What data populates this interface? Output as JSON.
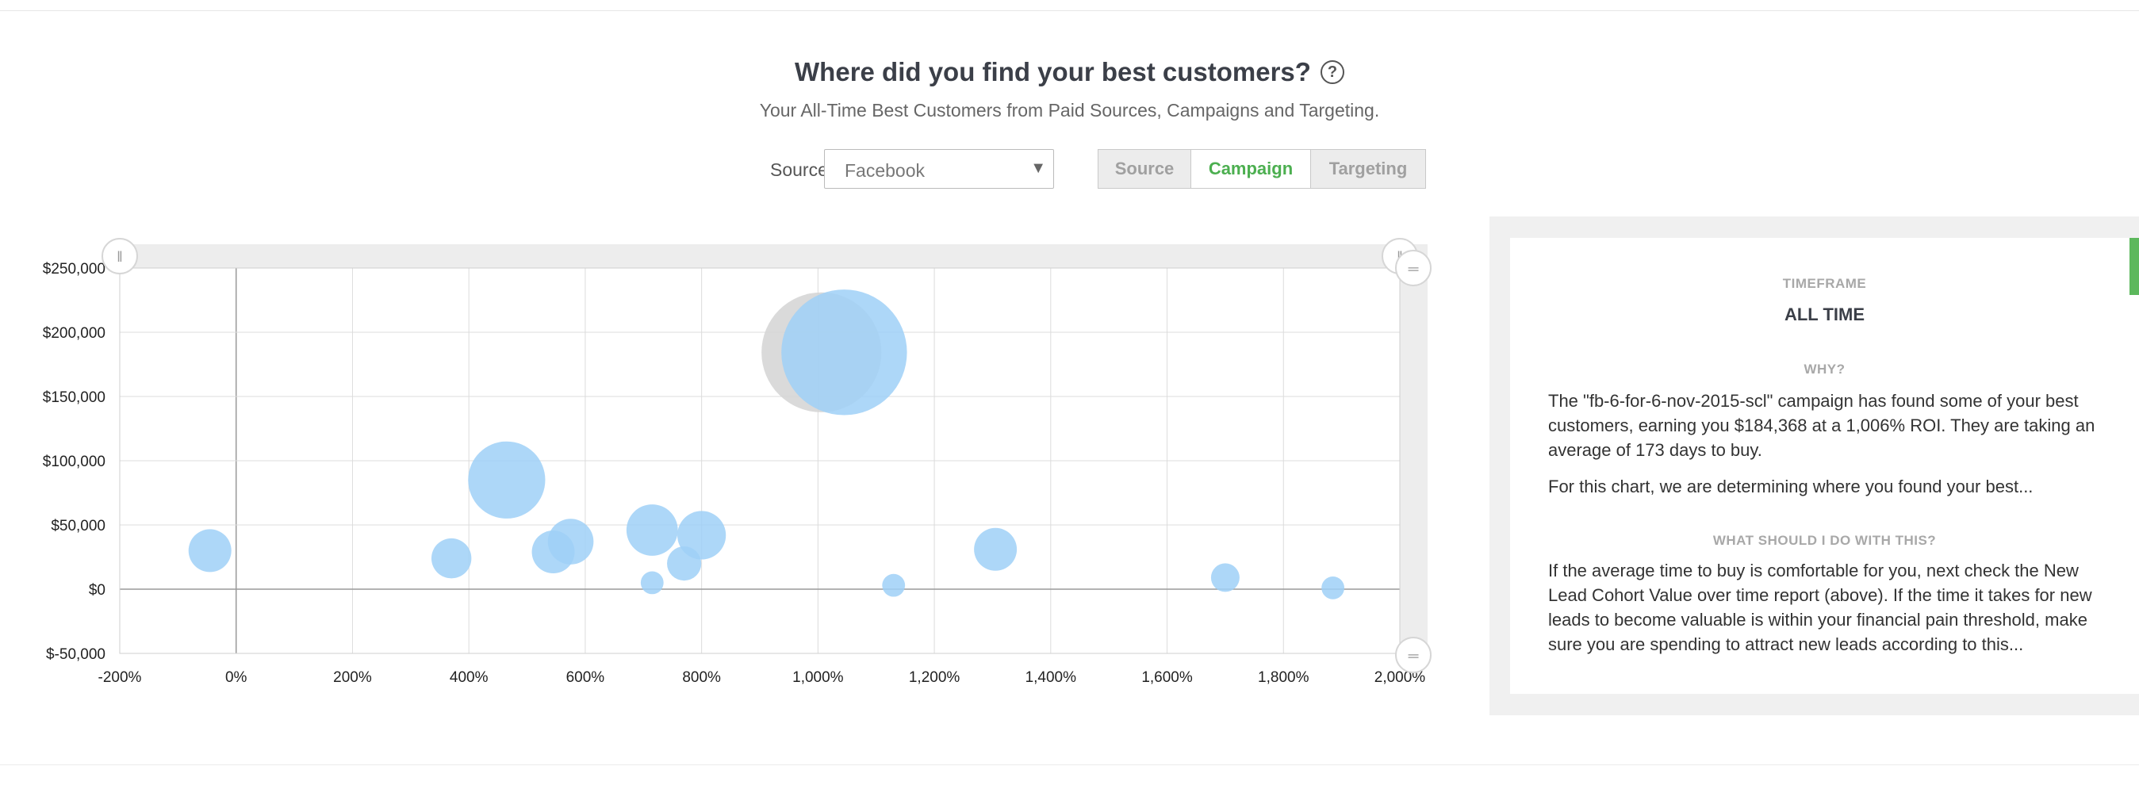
{
  "header": {
    "title": "Where did you find your best customers?",
    "help_icon": "?",
    "subtitle": "Your All-Time Best Customers from Paid Sources, Campaigns and Targeting."
  },
  "controls": {
    "source_label": "Source",
    "source_value": "Facebook",
    "source_caret": "▼",
    "segments": [
      "Source",
      "Campaign",
      "Targeting"
    ],
    "active_segment": "Campaign",
    "accent_color": "#4caf50"
  },
  "chart_data": {
    "type": "scatter",
    "x_tick_labels": [
      "-200%",
      "0%",
      "200%",
      "400%",
      "600%",
      "800%",
      "1,000%",
      "1,200%",
      "1,400%",
      "1,600%",
      "1,800%",
      "2,000%"
    ],
    "y_tick_labels": [
      "$250,000",
      "$200,000",
      "$150,000",
      "$100,000",
      "$50,000",
      "$0",
      "$-50,000"
    ],
    "xlim": [
      -200,
      2000
    ],
    "ylim": [
      -50000,
      250000
    ],
    "grid": true,
    "bubble_color": "#9fd0f7",
    "highlight_color": "#d3d3d3",
    "points": [
      {
        "x": -45,
        "y": 30000,
        "size": 15
      },
      {
        "x": 370,
        "y": 24000,
        "size": 14
      },
      {
        "x": 465,
        "y": 85000,
        "size": 27
      },
      {
        "x": 545,
        "y": 29000,
        "size": 15
      },
      {
        "x": 575,
        "y": 37000,
        "size": 16
      },
      {
        "x": 715,
        "y": 46000,
        "size": 18
      },
      {
        "x": 715,
        "y": 5000,
        "size": 8
      },
      {
        "x": 770,
        "y": 20000,
        "size": 12
      },
      {
        "x": 800,
        "y": 42000,
        "size": 17
      },
      {
        "x": 1006,
        "y": 184368,
        "size": 42,
        "highlight": true
      },
      {
        "x": 1045,
        "y": 184368,
        "size": 44
      },
      {
        "x": 1130,
        "y": 3000,
        "size": 8
      },
      {
        "x": 1305,
        "y": 31000,
        "size": 15
      },
      {
        "x": 1700,
        "y": 9000,
        "size": 10
      },
      {
        "x": 1885,
        "y": 1000,
        "size": 8
      }
    ]
  },
  "panel": {
    "timeframe_heading": "TIMEFRAME",
    "timeframe_value": "ALL TIME",
    "why_heading": "WHY?",
    "why_text": "The \"fb-6-for-6-nov-2015-scl\" campaign has found some of your best customers, earning you $184,368 at a 1,006% ROI. They are taking an average of 173 days to buy.",
    "for_text": "For this chart, we are determining where you found your best...",
    "what_heading": "WHAT SHOULD I DO WITH THIS?",
    "what_text": "If the average time to buy is comfortable for you, next check the New Lead Cohort Value over time report (above). If the time it takes for new leads to become valuable is within your financial pain threshold, make sure you are spending to attract new leads according to this..."
  }
}
